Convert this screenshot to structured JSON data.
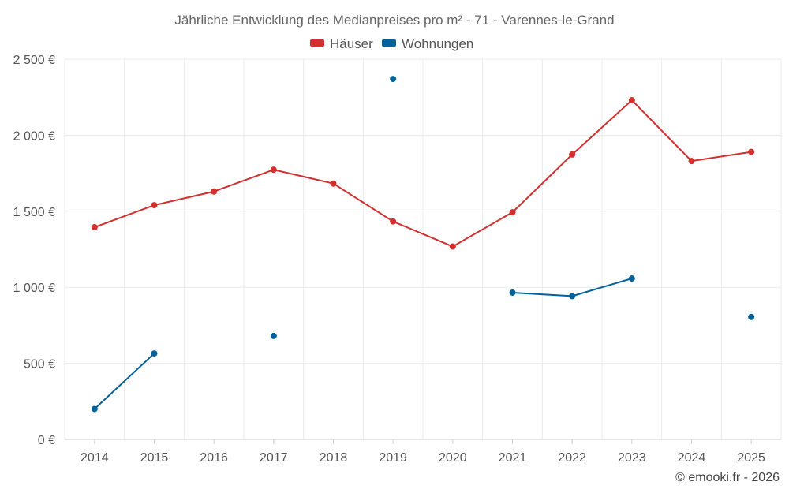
{
  "chart_data": {
    "type": "line",
    "title": "Jährliche Entwicklung des Medianpreises pro m² - 71 - Varennes-le-Grand",
    "categories": [
      "2014",
      "2015",
      "2016",
      "2017",
      "2018",
      "2019",
      "2020",
      "2021",
      "2022",
      "2023",
      "2024",
      "2025"
    ],
    "x_ticks": [
      "2014",
      "2015",
      "2016",
      "2017",
      "2018",
      "2019",
      "2020",
      "2021",
      "2022",
      "2023",
      "2024",
      "2025"
    ],
    "y_ticks": [
      "0 €",
      "500 €",
      "1 000 €",
      "1 500 €",
      "2 000 €",
      "2 500 €"
    ],
    "ylim": [
      0,
      2500
    ],
    "xlabel": "",
    "ylabel": "",
    "grid": true,
    "legend_position": "top-center",
    "series": [
      {
        "name": "Häuser",
        "color": "#d32f2f",
        "values": [
          1395,
          1540,
          1630,
          1773,
          1682,
          1433,
          1268,
          1493,
          1873,
          2230,
          1830,
          1890
        ]
      },
      {
        "name": "Wohnungen",
        "color": "#00629b",
        "values": [
          200,
          565,
          null,
          680,
          null,
          2370,
          null,
          965,
          942,
          1058,
          null,
          805
        ]
      }
    ]
  },
  "footer": "© emooki.fr - 2026"
}
